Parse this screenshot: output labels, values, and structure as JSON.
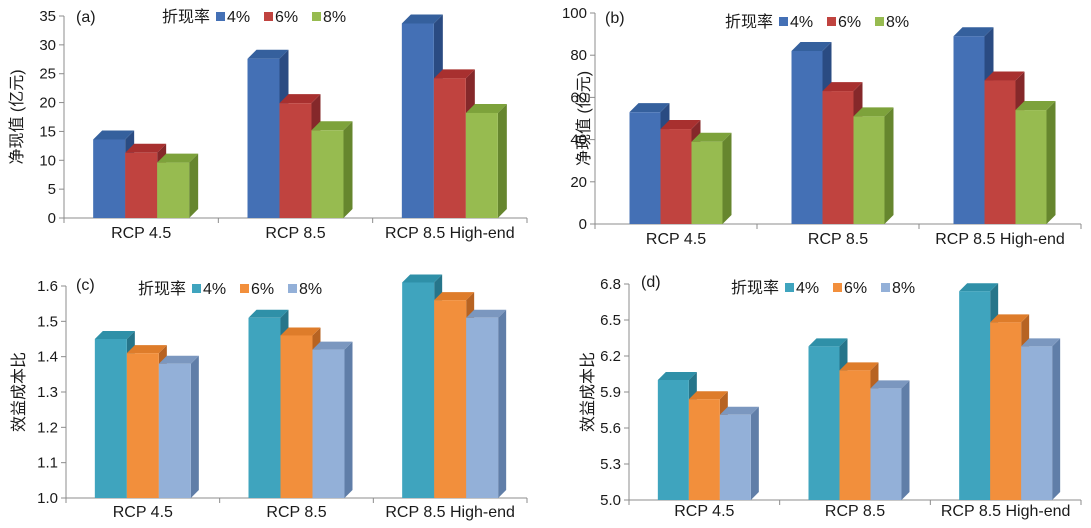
{
  "chart_data": [
    {
      "type": "bar",
      "panel_label": "(a)",
      "ylabel": "净现值 (亿元)",
      "legend_title": "折现率",
      "categories": [
        "RCP 4.5",
        "RCP 8.5",
        "RCP 8.5 High-end"
      ],
      "series": [
        {
          "name": "4%",
          "values": [
            13.6,
            27.6,
            33.7
          ]
        },
        {
          "name": "6%",
          "values": [
            11.3,
            19.9,
            24.2
          ]
        },
        {
          "name": "8%",
          "values": [
            9.6,
            15.2,
            18.2
          ]
        }
      ],
      "ylim": [
        0,
        35
      ],
      "yticks": [
        "0",
        "5",
        "10",
        "15",
        "20",
        "25",
        "30",
        "35"
      ]
    },
    {
      "type": "bar",
      "panel_label": "(b)",
      "ylabel": "净现值 (亿元)",
      "legend_title": "折现率",
      "categories": [
        "RCP 4.5",
        "RCP 8.5",
        "RCP 8.5 High-end"
      ],
      "series": [
        {
          "name": "4%",
          "values": [
            53,
            82,
            89
          ]
        },
        {
          "name": "6%",
          "values": [
            45,
            63,
            68
          ]
        },
        {
          "name": "8%",
          "values": [
            39,
            51,
            54
          ]
        }
      ],
      "ylim": [
        0,
        100
      ],
      "yticks": [
        "0",
        "20",
        "40",
        "60",
        "80",
        "100"
      ]
    },
    {
      "type": "bar",
      "panel_label": "(c)",
      "ylabel": "效益成本比",
      "legend_title": "折现率",
      "categories": [
        "RCP 4.5",
        "RCP 8.5",
        "RCP 8.5 High-end"
      ],
      "series": [
        {
          "name": "4%",
          "values": [
            1.45,
            1.51,
            1.61
          ]
        },
        {
          "name": "6%",
          "values": [
            1.41,
            1.46,
            1.56
          ]
        },
        {
          "name": "8%",
          "values": [
            1.38,
            1.42,
            1.51
          ]
        }
      ],
      "ylim": [
        1.0,
        1.6
      ],
      "yticks": [
        "1.0",
        "1.1",
        "1.2",
        "1.3",
        "1.4",
        "1.5",
        "1.6"
      ]
    },
    {
      "type": "bar",
      "panel_label": "(d)",
      "ylabel": "效益成本比",
      "legend_title": "折现率",
      "categories": [
        "RCP 4.5",
        "RCP 8.5",
        "RCP 8.5 High-end"
      ],
      "series": [
        {
          "name": "4%",
          "values": [
            6.0,
            6.28,
            6.74
          ]
        },
        {
          "name": "6%",
          "values": [
            5.84,
            6.08,
            6.48
          ]
        },
        {
          "name": "8%",
          "values": [
            5.71,
            5.93,
            6.28
          ]
        }
      ],
      "ylim": [
        5.0,
        6.8
      ],
      "yticks": [
        "5.0",
        "5.3",
        "5.6",
        "5.9",
        "6.2",
        "6.5",
        "6.8"
      ]
    }
  ],
  "colors": {
    "top": {
      "4%": {
        "front": "#4470b5",
        "side": "#2a4b82",
        "top": "#35609d"
      },
      "6%": {
        "front": "#c0433f",
        "side": "#85282a",
        "top": "#a8302f"
      },
      "8%": {
        "front": "#97bb50",
        "side": "#66862e",
        "top": "#7da23b"
      }
    },
    "bottom": {
      "4%": {
        "front": "#3fa4be",
        "side": "#26758a",
        "top": "#2f90a8"
      },
      "6%": {
        "front": "#f28f3c",
        "side": "#b76322",
        "top": "#de7c2a"
      },
      "8%": {
        "front": "#93b0d8",
        "side": "#607ea8",
        "top": "#7b97bf"
      }
    },
    "axis": "#8c8c8c"
  }
}
